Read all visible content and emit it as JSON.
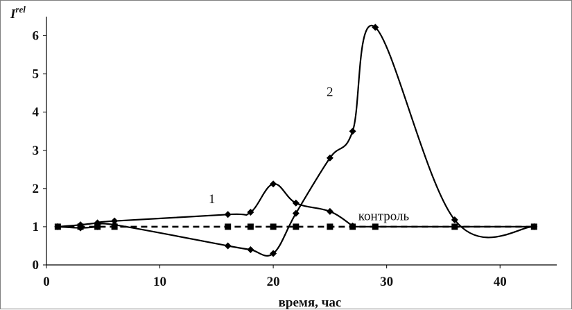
{
  "chart_data": {
    "type": "line",
    "title": "",
    "ylabel": "I",
    "ylabel_superscript": "rel",
    "xlabel": "время, час",
    "xlim": [
      0,
      45
    ],
    "ylim": [
      0,
      6.5
    ],
    "x_ticks": [
      0,
      10,
      20,
      30,
      40
    ],
    "y_ticks": [
      0,
      1,
      2,
      3,
      4,
      5,
      6
    ],
    "grid": false,
    "legend": "none",
    "annotations": [
      {
        "text": "1",
        "series": "1"
      },
      {
        "text": "2",
        "series": "2"
      },
      {
        "text": "контроль",
        "series": "контроль"
      }
    ],
    "series": [
      {
        "name": "1",
        "style": "solid",
        "marker": "diamond",
        "color": "#000000",
        "x": [
          1,
          3,
          4.5,
          6,
          16,
          18,
          20,
          22,
          25,
          27
        ],
        "y": [
          1.0,
          1.05,
          1.1,
          1.15,
          1.32,
          1.38,
          2.12,
          1.62,
          1.4,
          1.02
        ]
      },
      {
        "name": "2",
        "style": "solid",
        "marker": "diamond",
        "color": "#000000",
        "x": [
          1,
          3,
          4.5,
          6,
          16,
          18,
          20,
          22,
          25,
          27,
          29,
          36,
          43
        ],
        "y": [
          1.0,
          0.97,
          1.0,
          1.05,
          0.5,
          0.4,
          0.3,
          1.35,
          2.8,
          3.5,
          6.22,
          1.18,
          1.0
        ]
      },
      {
        "name": "контроль",
        "style": "dashed",
        "marker": "square",
        "color": "#000000",
        "x": [
          1,
          3,
          4.5,
          6,
          16,
          18,
          20,
          22,
          25,
          27,
          29,
          36,
          43
        ],
        "y": [
          1,
          1,
          1,
          1,
          1,
          1,
          1,
          1,
          1,
          1,
          1,
          1,
          1
        ]
      },
      {
        "name": "контроль-tail",
        "style": "solid",
        "marker": "none",
        "color": "#000000",
        "x": [
          27,
          36,
          43
        ],
        "y": [
          1,
          1,
          1
        ]
      }
    ]
  }
}
